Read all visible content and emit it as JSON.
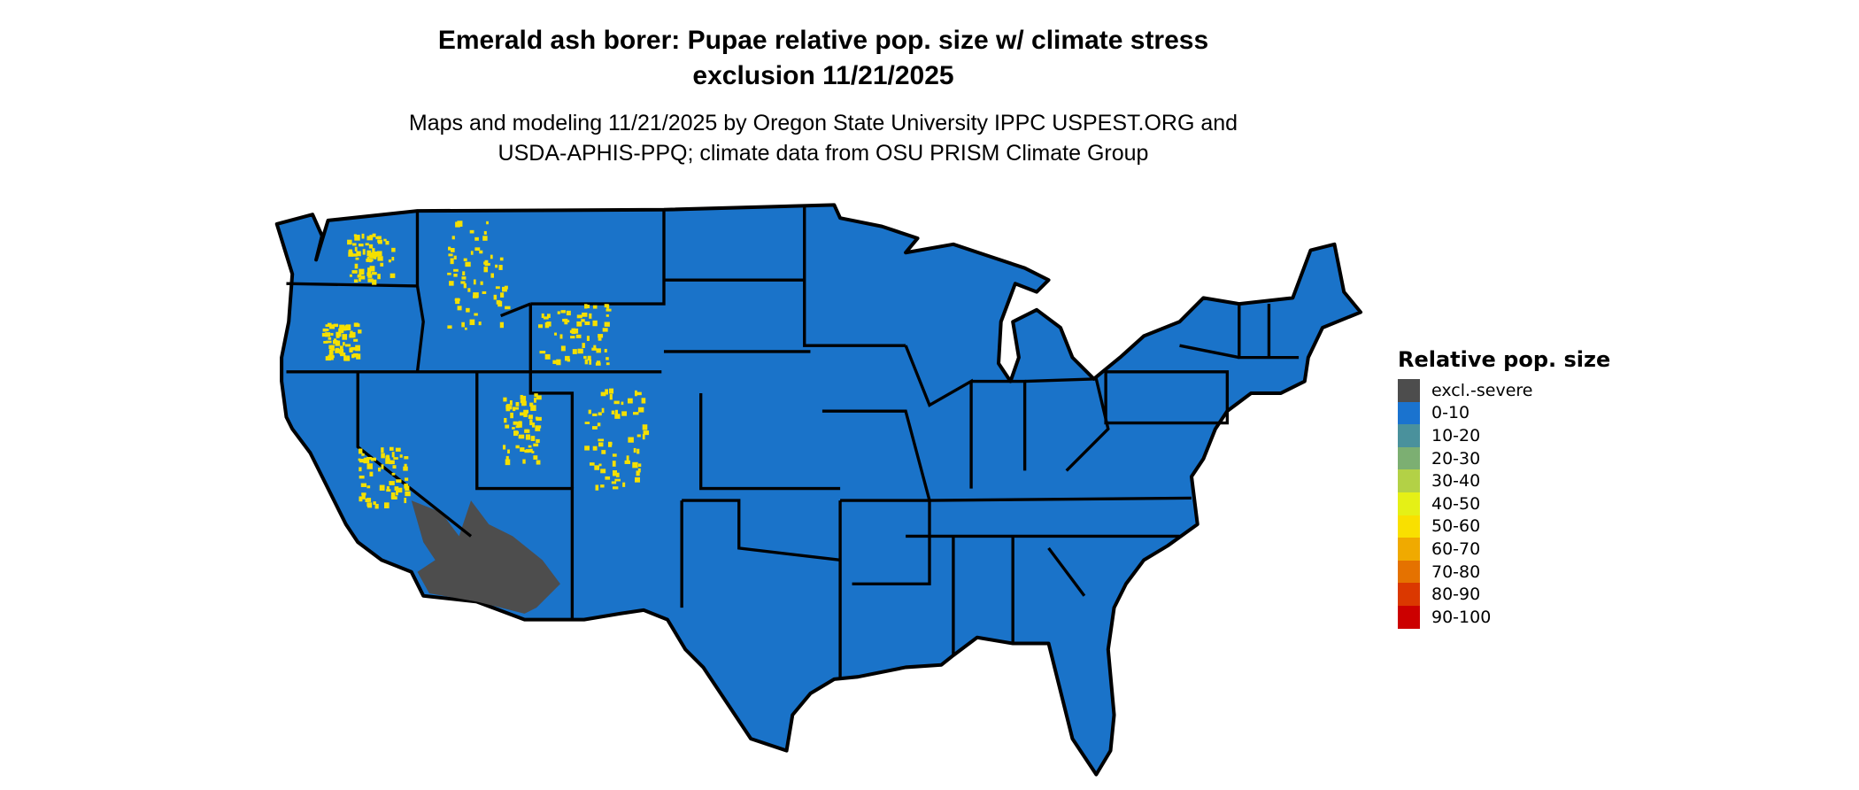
{
  "title_line1": "Emerald ash borer: Pupae relative pop. size w/ climate stress",
  "title_line2": "exclusion 11/21/2025",
  "subtitle_line1": "Maps and modeling 11/21/2025 by Oregon State University IPPC USPEST.ORG and",
  "subtitle_line2": "USDA-APHIS-PPQ; climate data from OSU PRISM Climate Group",
  "map": {
    "region": "Contiguous United States",
    "base_color": "#1a73c9",
    "excluded_color": "#4d4d4d",
    "hotspot_color": "#f5e000",
    "border_color": "#000000"
  },
  "legend": {
    "title": "Relative pop. size",
    "position": "right",
    "items": [
      {
        "label": "excl.-severe",
        "color": "#4d4d4d"
      },
      {
        "label": "0-10",
        "color": "#1a73cf"
      },
      {
        "label": "10-20",
        "color": "#4a919c"
      },
      {
        "label": "20-30",
        "color": "#7caf72"
      },
      {
        "label": "30-40",
        "color": "#b3d146"
      },
      {
        "label": "40-50",
        "color": "#e5f016"
      },
      {
        "label": "50-60",
        "color": "#f9e000"
      },
      {
        "label": "60-70",
        "color": "#f0aa00"
      },
      {
        "label": "70-80",
        "color": "#e57200"
      },
      {
        "label": "80-90",
        "color": "#db3800"
      },
      {
        "label": "90-100",
        "color": "#cc0000"
      }
    ]
  }
}
